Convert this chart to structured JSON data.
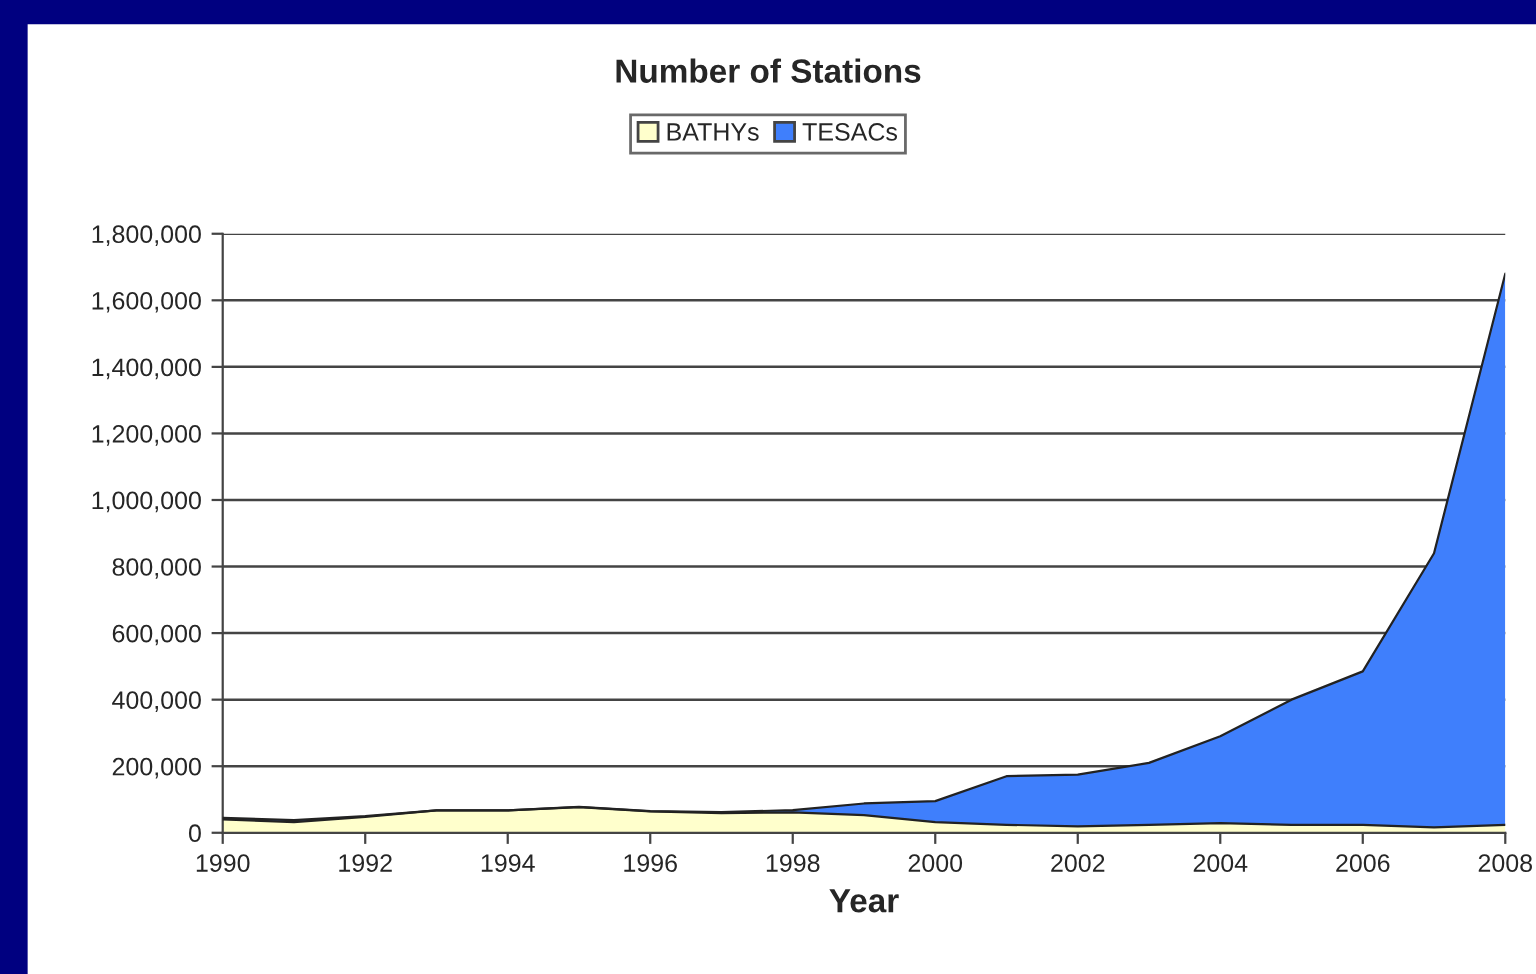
{
  "chart_data": {
    "type": "area",
    "stacked": true,
    "title": "Number of Stations",
    "xlabel": "Year",
    "x": [
      1990,
      1991,
      1992,
      1993,
      1994,
      1995,
      1996,
      1997,
      1998,
      1999,
      2000,
      2001,
      2002,
      2003,
      2004,
      2005,
      2006,
      2007,
      2008
    ],
    "series": [
      {
        "name": "BATHYs",
        "color": "#ffffcc",
        "values": [
          40000,
          32000,
          48000,
          67000,
          67000,
          77000,
          64000,
          59000,
          61000,
          53000,
          32000,
          24000,
          19000,
          24000,
          29000,
          24000,
          24000,
          16000,
          24000
        ]
      },
      {
        "name": "TESACs",
        "color": "#3f7ffc",
        "values": [
          5000,
          6000,
          2000,
          0,
          0,
          1000,
          1000,
          3000,
          7000,
          35000,
          63000,
          146000,
          156000,
          186000,
          261000,
          376000,
          461000,
          824000,
          1656000
        ]
      }
    ],
    "xlim": [
      1990,
      2008
    ],
    "xticks": [
      1990,
      1992,
      1994,
      1996,
      1998,
      2000,
      2002,
      2004,
      2006,
      2008
    ],
    "ylim": [
      0,
      1800000
    ],
    "yticks": [
      {
        "value": 0,
        "label": "0"
      },
      {
        "value": 200000,
        "label": "200,000"
      },
      {
        "value": 400000,
        "label": "400,000"
      },
      {
        "value": 600000,
        "label": "600,000"
      },
      {
        "value": 800000,
        "label": "800,000"
      },
      {
        "value": 1000000,
        "label": "1,000,000"
      },
      {
        "value": 1200000,
        "label": "1,200,000"
      },
      {
        "value": 1400000,
        "label": "1,400,000"
      },
      {
        "value": 1600000,
        "label": "1,600,000"
      },
      {
        "value": 1800000,
        "label": "1,800,000"
      }
    ],
    "grid": "y",
    "legend": "top"
  }
}
